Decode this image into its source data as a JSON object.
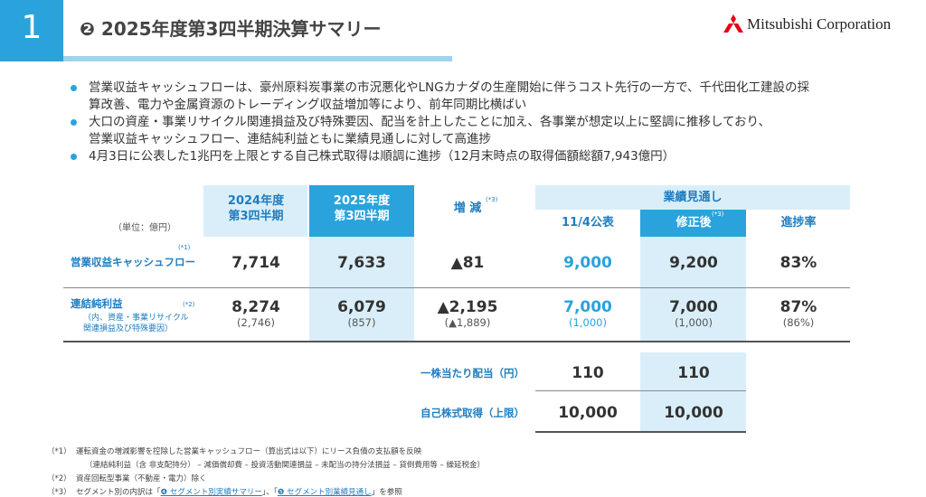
{
  "header": {
    "number": "1",
    "title": "❷ 2025年度第3四半期決算サマリー",
    "logo": "Mitsubishi Corporation"
  },
  "bullets": [
    [
      "営業収益キャッシュフローは、豪州原料炭事業の市況悪化やLNGカナダの生産開始に伴うコスト先行の一方で、千代田化工建設の採",
      "算改善、電力や金属資源のトレーディング収益増加等により、前年同期比横ばい"
    ],
    [
      "大口の資産・事業リサイクル関連損益及び特殊要因、配当を計上したことに加え、各事業が想定以上に堅調に推移しており、",
      "営業収益キャッシュフロー、連結純利益ともに業績見通しに対して高進捗"
    ],
    [
      "4月3日に公表した1兆円を上限とする自己株式取得は順調に進捗（12月末時点の取得価額総額7,943億円）"
    ]
  ],
  "table": {
    "unit": "（単位：億円）",
    "group": "業績見通し",
    "columns": [
      {
        "lines": [
          "2024年度",
          "第3四半期"
        ]
      },
      {
        "lines": [
          "2025年度",
          "第3四半期"
        ]
      },
      {
        "lines": [
          "増 減"
        ],
        "note": "(*3)"
      },
      {
        "lines": [
          "11/4公表"
        ]
      },
      {
        "lines": [
          "修正後"
        ],
        "note": "(*3)"
      },
      {
        "lines": [
          "進捗率"
        ]
      }
    ],
    "rows": [
      {
        "label": "営業収益キャッシュフロー",
        "note": "(*1)",
        "values": [
          "7,714",
          "7,633",
          "▲81",
          "9,000",
          "9,200",
          "83%"
        ]
      },
      {
        "label": "連結純利益",
        "note": "(*2)",
        "sub": [
          "（内、資産・事業リサイクル",
          "関連損益及び特殊要因）"
        ],
        "values": [
          "8,274",
          "6,079",
          "▲2,195",
          "7,000",
          "7,000",
          "87%"
        ],
        "subvalues": [
          "(2,746)",
          "(857)",
          "(▲1,889)",
          "(1,000)",
          "(1,000)",
          "(86%)"
        ]
      }
    ],
    "extra_rows": [
      {
        "label": "一株当たり配当（円）",
        "values": [
          "110",
          "110"
        ]
      },
      {
        "label": "自己株式取得（上限）",
        "values": [
          "10,000",
          "10,000"
        ]
      }
    ]
  },
  "footnotes": [
    {
      "mark": "（*1）",
      "lines": [
        "運転資金の増減影響を控除した営業キャッシュフロー（算出式は以下）にリース負債の支払額を反映",
        "（連結純利益（含 非支配持分） – 減価償却費 – 投資活動関連損益 – 未配当の持分法損益 – 貸倒費用等 – 繰延税金）"
      ]
    },
    {
      "mark": "（*2）",
      "lines": [
        "資産回転型事業（不動産・電力）除く"
      ]
    },
    {
      "mark": "（*3）",
      "parts": [
        "セグメント別の内訳は「",
        "❹ セグメント別実績サマリー",
        "」、「",
        "❺ セグメント別業績見通し",
        "」を参照"
      ]
    }
  ]
}
